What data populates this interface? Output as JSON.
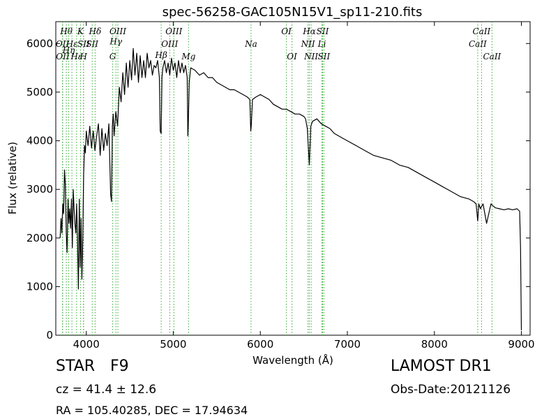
{
  "chart_data": {
    "type": "line",
    "title": "spec-56258-GAC105N15V1_sp11-210.fits",
    "xlabel": "Wavelength (Å)",
    "ylabel": "Flux (relative)",
    "xlim": [
      3650,
      9100
    ],
    "ylim": [
      0,
      6450
    ],
    "xticks": [
      4000,
      5000,
      6000,
      7000,
      8000,
      9000
    ],
    "yticks": [
      0,
      1000,
      2000,
      3000,
      4000,
      5000,
      6000
    ],
    "grid": false,
    "line_color": "#000000",
    "marker_color": "#33aa33",
    "series": [
      {
        "name": "",
        "x": [
          3700,
          3710,
          3720,
          3730,
          3740,
          3750,
          3760,
          3770,
          3780,
          3790,
          3800,
          3810,
          3820,
          3830,
          3840,
          3850,
          3860,
          3870,
          3880,
          3890,
          3900,
          3910,
          3920,
          3930,
          3940,
          3950,
          3960,
          3970,
          3980,
          3990,
          4000,
          4020,
          4040,
          4060,
          4080,
          4100,
          4120,
          4140,
          4160,
          4180,
          4200,
          4220,
          4240,
          4260,
          4280,
          4290,
          4300,
          4310,
          4320,
          4340,
          4360,
          4380,
          4400,
          4420,
          4440,
          4460,
          4480,
          4500,
          4520,
          4540,
          4560,
          4580,
          4600,
          4620,
          4640,
          4660,
          4680,
          4700,
          4720,
          4740,
          4760,
          4780,
          4800,
          4820,
          4840,
          4850,
          4861,
          4870,
          4880,
          4900,
          4920,
          4940,
          4960,
          4980,
          5000,
          5020,
          5040,
          5060,
          5080,
          5100,
          5120,
          5140,
          5160,
          5167,
          5172,
          5183,
          5200,
          5250,
          5300,
          5350,
          5400,
          5450,
          5500,
          5550,
          5600,
          5650,
          5700,
          5750,
          5800,
          5850,
          5880,
          5890,
          5896,
          5910,
          5950,
          6000,
          6050,
          6100,
          6150,
          6200,
          6250,
          6300,
          6350,
          6400,
          6450,
          6500,
          6520,
          6540,
          6563,
          6580,
          6600,
          6650,
          6700,
          6750,
          6800,
          6850,
          6900,
          6950,
          7000,
          7100,
          7200,
          7300,
          7400,
          7500,
          7600,
          7700,
          7800,
          7900,
          8000,
          8100,
          8200,
          8300,
          8400,
          8450,
          8480,
          8498,
          8510,
          8530,
          8542,
          8560,
          8600,
          8650,
          8662,
          8680,
          8700,
          8750,
          8800,
          8850,
          8900,
          8950,
          8980,
          8990,
          9000
        ],
        "y": [
          2000,
          2400,
          2100,
          2700,
          2500,
          3400,
          3100,
          2100,
          1700,
          2800,
          2300,
          2600,
          2200,
          2800,
          1800,
          3000,
          2600,
          2300,
          2100,
          2700,
          1900,
          950,
          2800,
          1400,
          2400,
          1150,
          2000,
          3300,
          3900,
          3750,
          4200,
          3900,
          4300,
          3850,
          4200,
          3800,
          4100,
          4350,
          3700,
          4250,
          3800,
          4150,
          3900,
          4350,
          2900,
          2750,
          4300,
          4550,
          4100,
          4600,
          4300,
          5100,
          4800,
          5400,
          4950,
          5600,
          5100,
          5650,
          5250,
          5900,
          5350,
          5800,
          5200,
          5750,
          5300,
          5650,
          5300,
          5800,
          5500,
          5650,
          5350,
          5550,
          5500,
          5650,
          5300,
          4200,
          4150,
          5300,
          5500,
          5650,
          5400,
          5600,
          5350,
          5700,
          5450,
          5600,
          5300,
          5650,
          5400,
          5600,
          5400,
          5550,
          5300,
          4100,
          4300,
          5200,
          5500,
          5450,
          5350,
          5400,
          5300,
          5300,
          5200,
          5150,
          5100,
          5050,
          5050,
          5000,
          4950,
          4900,
          4850,
          4200,
          4300,
          4850,
          4900,
          4950,
          4900,
          4850,
          4750,
          4700,
          4650,
          4650,
          4600,
          4550,
          4550,
          4500,
          4450,
          4250,
          3500,
          4300,
          4400,
          4450,
          4350,
          4300,
          4250,
          4150,
          4100,
          4050,
          4000,
          3900,
          3800,
          3700,
          3650,
          3600,
          3500,
          3450,
          3350,
          3250,
          3150,
          3050,
          2950,
          2850,
          2800,
          2750,
          2700,
          2350,
          2700,
          2600,
          2650,
          2700,
          2300,
          2700,
          2680,
          2650,
          2620,
          2600,
          2580,
          2600,
          2580,
          2600,
          2550,
          1800,
          100
        ]
      }
    ],
    "line_markers": [
      {
        "wavelength": 3727,
        "label": "OII",
        "row": 1
      },
      {
        "wavelength": 3729,
        "label": "OII",
        "row": 2
      },
      {
        "wavelength": 3771,
        "label": "Hθ",
        "row": 0
      },
      {
        "wavelength": 3798,
        "label": "Hη",
        "row": 1.5
      },
      {
        "wavelength": 3835,
        "label": "Hε",
        "row": 1
      },
      {
        "wavelength": 3889,
        "label": "Hε",
        "row": 2
      },
      {
        "wavelength": 3934,
        "label": "K",
        "row": 0
      },
      {
        "wavelength": 3968,
        "label": "H",
        "row": 2
      },
      {
        "wavelength": 3970,
        "label": "SII",
        "row": 1
      },
      {
        "wavelength": 4068,
        "label": "SII",
        "row": 1
      },
      {
        "wavelength": 4102,
        "label": "Hδ",
        "row": 0
      },
      {
        "wavelength": 4304,
        "label": "G",
        "row": 2
      },
      {
        "wavelength": 4341,
        "label": "Hγ",
        "row": 0.8
      },
      {
        "wavelength": 4363,
        "label": "OIII",
        "row": 0
      },
      {
        "wavelength": 4861,
        "label": "Hβ",
        "row": 1.9
      },
      {
        "wavelength": 4959,
        "label": "OIII",
        "row": 1
      },
      {
        "wavelength": 5007,
        "label": "OIII",
        "row": 0
      },
      {
        "wavelength": 5175,
        "label": "Mg",
        "row": 2
      },
      {
        "wavelength": 5893,
        "label": "Na",
        "row": 1
      },
      {
        "wavelength": 6300,
        "label": "OI",
        "row": 0
      },
      {
        "wavelength": 6364,
        "label": "OI",
        "row": 2
      },
      {
        "wavelength": 6548,
        "label": "NII",
        "row": 1
      },
      {
        "wavelength": 6563,
        "label": "Hα",
        "row": 0
      },
      {
        "wavelength": 6584,
        "label": "NII",
        "row": 2
      },
      {
        "wavelength": 6708,
        "label": "Li",
        "row": 1
      },
      {
        "wavelength": 6716,
        "label": "SII",
        "row": 0
      },
      {
        "wavelength": 6731,
        "label": "SII",
        "row": 2
      },
      {
        "wavelength": 8498,
        "label": "CaII",
        "row": 1
      },
      {
        "wavelength": 8542,
        "label": "CaII",
        "row": 0
      },
      {
        "wavelength": 8662,
        "label": "CaII",
        "row": 2
      }
    ]
  },
  "info": {
    "object_type": "STAR",
    "subclass": "F9",
    "survey": "LAMOST DR1",
    "redshift_text": "cz = 41.4 ± 12.6",
    "obs_date_text": "Obs-Date:20121126",
    "coords_text": "RA = 105.40285, DEC = 17.94634"
  }
}
